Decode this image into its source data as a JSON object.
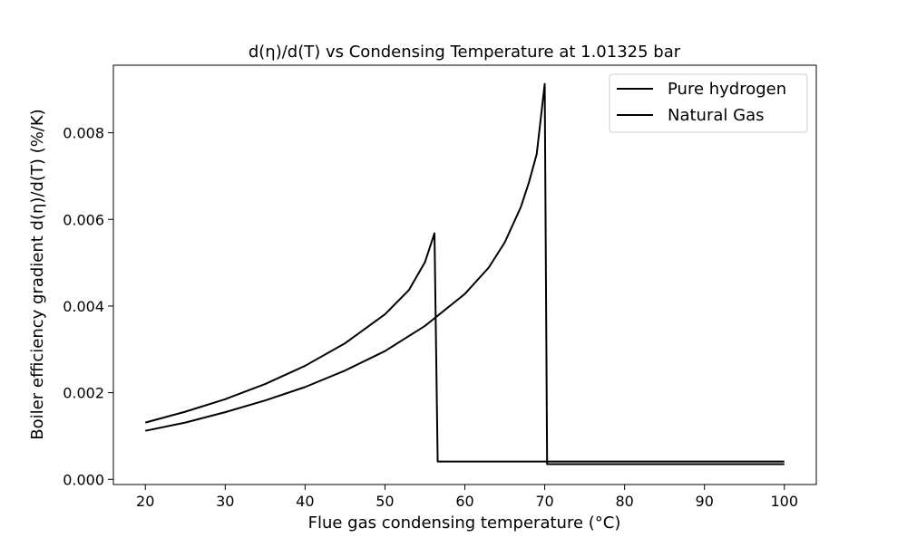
{
  "chart_data": {
    "type": "line",
    "title": "d(η)/d(T) vs Condensing Temperature at 1.01325 bar",
    "xlabel": "Flue gas condensing temperature (°C)",
    "ylabel": "Boiler efficiency gradient d(η)/d(T) (%/K)",
    "xlim": [
      16,
      104
    ],
    "ylim": [
      -0.00012,
      0.00956
    ],
    "xticks": [
      20,
      30,
      40,
      50,
      60,
      70,
      80,
      90,
      100
    ],
    "yticks": [
      0.0,
      0.002,
      0.004,
      0.006,
      0.008
    ],
    "ytick_labels": [
      "0.000",
      "0.002",
      "0.004",
      "0.006",
      "0.008"
    ],
    "grid": false,
    "legend_position": "top-right",
    "series": [
      {
        "name": "Pure hydrogen",
        "color": "#000000",
        "points": [
          [
            20,
            0.00112
          ],
          [
            25,
            0.00131
          ],
          [
            30,
            0.00155
          ],
          [
            35,
            0.00182
          ],
          [
            40,
            0.00213
          ],
          [
            45,
            0.00251
          ],
          [
            50,
            0.00296
          ],
          [
            55,
            0.00354
          ],
          [
            60,
            0.00428
          ],
          [
            63,
            0.00489
          ],
          [
            65,
            0.00547
          ],
          [
            67,
            0.00628
          ],
          [
            68,
            0.00684
          ],
          [
            69,
            0.00751
          ],
          [
            70,
            0.00913
          ],
          [
            70.3,
            0.00035
          ],
          [
            100,
            0.00035
          ]
        ]
      },
      {
        "name": "Natural Gas",
        "color": "#000000",
        "points": [
          [
            20,
            0.00131
          ],
          [
            25,
            0.00156
          ],
          [
            30,
            0.00185
          ],
          [
            35,
            0.0022
          ],
          [
            40,
            0.00262
          ],
          [
            45,
            0.00314
          ],
          [
            50,
            0.00381
          ],
          [
            53,
            0.00437
          ],
          [
            55,
            0.00501
          ],
          [
            56.2,
            0.00568
          ],
          [
            56.6,
            0.00041
          ],
          [
            100,
            0.00041
          ]
        ]
      }
    ]
  }
}
